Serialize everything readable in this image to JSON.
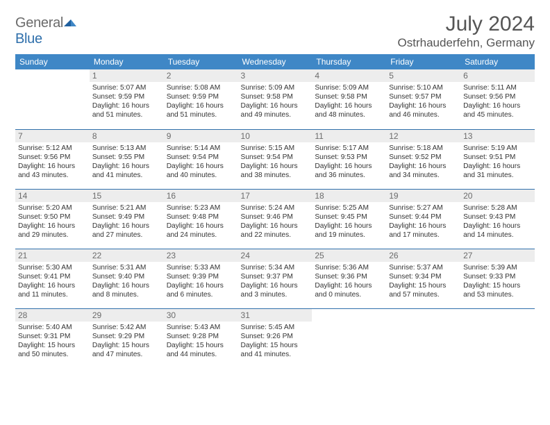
{
  "logo": {
    "word1": "General",
    "word2": "Blue"
  },
  "title": "July 2024",
  "location": "Ostrhauderfehn, Germany",
  "colors": {
    "header_bg": "#3f87c6",
    "header_text": "#ffffff",
    "rule": "#2f6fab",
    "daynum_bg": "#ededed",
    "daynum_text": "#6b6b6b",
    "body_text": "#333333",
    "logo_gray": "#6b6b6b",
    "logo_blue": "#2f6fab",
    "page_bg": "#ffffff"
  },
  "weekdays": [
    "Sunday",
    "Monday",
    "Tuesday",
    "Wednesday",
    "Thursday",
    "Friday",
    "Saturday"
  ],
  "weeks": [
    [
      null,
      {
        "n": "1",
        "r": "5:07 AM",
        "s": "9:59 PM",
        "d": "16 hours and 51 minutes."
      },
      {
        "n": "2",
        "r": "5:08 AM",
        "s": "9:59 PM",
        "d": "16 hours and 51 minutes."
      },
      {
        "n": "3",
        "r": "5:09 AM",
        "s": "9:58 PM",
        "d": "16 hours and 49 minutes."
      },
      {
        "n": "4",
        "r": "5:09 AM",
        "s": "9:58 PM",
        "d": "16 hours and 48 minutes."
      },
      {
        "n": "5",
        "r": "5:10 AM",
        "s": "9:57 PM",
        "d": "16 hours and 46 minutes."
      },
      {
        "n": "6",
        "r": "5:11 AM",
        "s": "9:56 PM",
        "d": "16 hours and 45 minutes."
      }
    ],
    [
      {
        "n": "7",
        "r": "5:12 AM",
        "s": "9:56 PM",
        "d": "16 hours and 43 minutes."
      },
      {
        "n": "8",
        "r": "5:13 AM",
        "s": "9:55 PM",
        "d": "16 hours and 41 minutes."
      },
      {
        "n": "9",
        "r": "5:14 AM",
        "s": "9:54 PM",
        "d": "16 hours and 40 minutes."
      },
      {
        "n": "10",
        "r": "5:15 AM",
        "s": "9:54 PM",
        "d": "16 hours and 38 minutes."
      },
      {
        "n": "11",
        "r": "5:17 AM",
        "s": "9:53 PM",
        "d": "16 hours and 36 minutes."
      },
      {
        "n": "12",
        "r": "5:18 AM",
        "s": "9:52 PM",
        "d": "16 hours and 34 minutes."
      },
      {
        "n": "13",
        "r": "5:19 AM",
        "s": "9:51 PM",
        "d": "16 hours and 31 minutes."
      }
    ],
    [
      {
        "n": "14",
        "r": "5:20 AM",
        "s": "9:50 PM",
        "d": "16 hours and 29 minutes."
      },
      {
        "n": "15",
        "r": "5:21 AM",
        "s": "9:49 PM",
        "d": "16 hours and 27 minutes."
      },
      {
        "n": "16",
        "r": "5:23 AM",
        "s": "9:48 PM",
        "d": "16 hours and 24 minutes."
      },
      {
        "n": "17",
        "r": "5:24 AM",
        "s": "9:46 PM",
        "d": "16 hours and 22 minutes."
      },
      {
        "n": "18",
        "r": "5:25 AM",
        "s": "9:45 PM",
        "d": "16 hours and 19 minutes."
      },
      {
        "n": "19",
        "r": "5:27 AM",
        "s": "9:44 PM",
        "d": "16 hours and 17 minutes."
      },
      {
        "n": "20",
        "r": "5:28 AM",
        "s": "9:43 PM",
        "d": "16 hours and 14 minutes."
      }
    ],
    [
      {
        "n": "21",
        "r": "5:30 AM",
        "s": "9:41 PM",
        "d": "16 hours and 11 minutes."
      },
      {
        "n": "22",
        "r": "5:31 AM",
        "s": "9:40 PM",
        "d": "16 hours and 8 minutes."
      },
      {
        "n": "23",
        "r": "5:33 AM",
        "s": "9:39 PM",
        "d": "16 hours and 6 minutes."
      },
      {
        "n": "24",
        "r": "5:34 AM",
        "s": "9:37 PM",
        "d": "16 hours and 3 minutes."
      },
      {
        "n": "25",
        "r": "5:36 AM",
        "s": "9:36 PM",
        "d": "16 hours and 0 minutes."
      },
      {
        "n": "26",
        "r": "5:37 AM",
        "s": "9:34 PM",
        "d": "15 hours and 57 minutes."
      },
      {
        "n": "27",
        "r": "5:39 AM",
        "s": "9:33 PM",
        "d": "15 hours and 53 minutes."
      }
    ],
    [
      {
        "n": "28",
        "r": "5:40 AM",
        "s": "9:31 PM",
        "d": "15 hours and 50 minutes."
      },
      {
        "n": "29",
        "r": "5:42 AM",
        "s": "9:29 PM",
        "d": "15 hours and 47 minutes."
      },
      {
        "n": "30",
        "r": "5:43 AM",
        "s": "9:28 PM",
        "d": "15 hours and 44 minutes."
      },
      {
        "n": "31",
        "r": "5:45 AM",
        "s": "9:26 PM",
        "d": "15 hours and 41 minutes."
      },
      null,
      null,
      null
    ]
  ],
  "labels": {
    "sunrise": "Sunrise:",
    "sunset": "Sunset:",
    "daylight": "Daylight:"
  }
}
